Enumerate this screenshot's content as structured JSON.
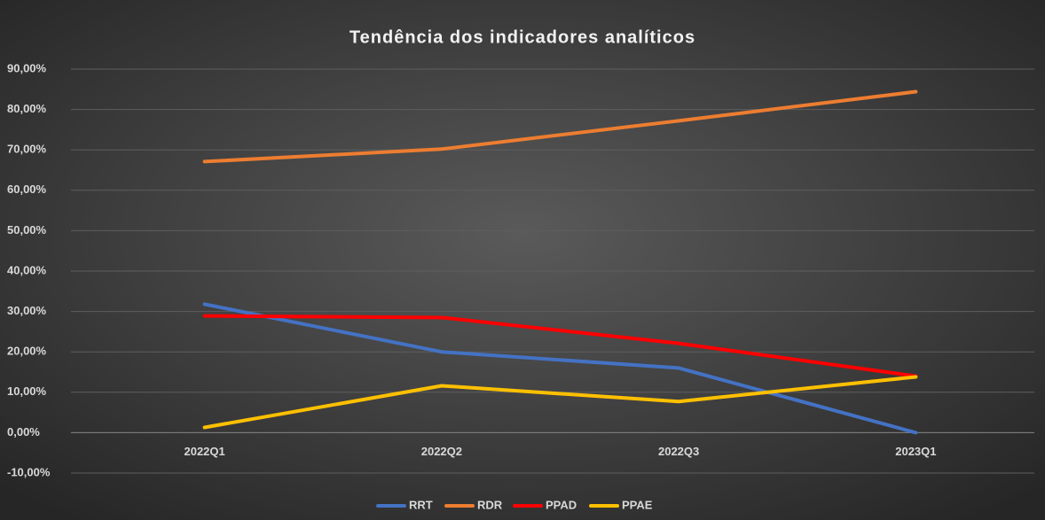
{
  "chart_data": {
    "type": "line",
    "title": "Tendência dos indicadores analíticos",
    "categories": [
      "2022Q1",
      "2022Q2",
      "2022Q3",
      "2023Q1"
    ],
    "series": [
      {
        "name": "RRT",
        "color": "#4472c4",
        "values": [
          31.8,
          20.0,
          16.0,
          0.0
        ]
      },
      {
        "name": "RDR",
        "color": "#ed7d31",
        "values": [
          67.1,
          70.2,
          77.2,
          84.4
        ]
      },
      {
        "name": "PPAD",
        "color": "#ff0000",
        "values": [
          28.9,
          28.5,
          22.1,
          14.0
        ]
      },
      {
        "name": "PPAE",
        "color": "#ffc000",
        "values": [
          1.3,
          11.6,
          7.7,
          13.8
        ]
      }
    ],
    "ylim": [
      -10,
      90
    ],
    "yticks": [
      {
        "value": -10,
        "label": "-10,00%"
      },
      {
        "value": 0,
        "label": "0,00%"
      },
      {
        "value": 10,
        "label": "10,00%"
      },
      {
        "value": 20,
        "label": "20,00%"
      },
      {
        "value": 30,
        "label": "30,00%"
      },
      {
        "value": 40,
        "label": "40,00%"
      },
      {
        "value": 50,
        "label": "50,00%"
      },
      {
        "value": 60,
        "label": "60,00%"
      },
      {
        "value": 70,
        "label": "70,00%"
      },
      {
        "value": 80,
        "label": "80,00%"
      },
      {
        "value": 90,
        "label": "90,00%"
      }
    ],
    "grid": true,
    "legend": "bottom"
  }
}
